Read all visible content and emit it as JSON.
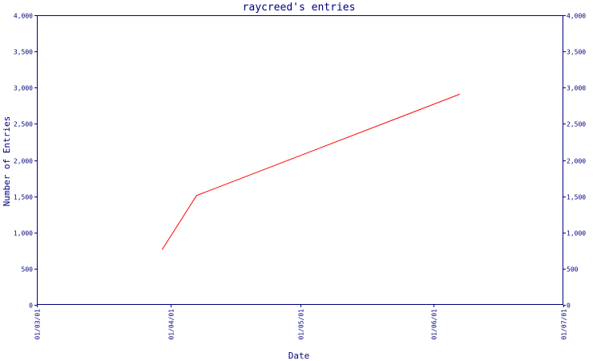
{
  "chart_data": {
    "type": "line",
    "title": "raycreed's entries",
    "xlabel": "Date",
    "ylabel": "Number of Entries",
    "x_tick_labels": [
      "01/03/01",
      "01/04/01",
      "01/05/01",
      "01/06/01",
      "01/07/01"
    ],
    "y_ticks": [
      0,
      500,
      1000,
      1500,
      2000,
      2500,
      3000,
      3500,
      4000
    ],
    "y_tick_labels": [
      "0",
      "500",
      "1,000",
      "1,500",
      "2,000",
      "2,500",
      "3,000",
      "3,500",
      "4,000"
    ],
    "ylim": [
      0,
      4000
    ],
    "x": [
      "2001-03-30",
      "2001-04-07",
      "2001-06-07"
    ],
    "series": [
      {
        "values": [
          760,
          1510,
          2910
        ]
      }
    ],
    "secondary_y_axis": true,
    "colors": {
      "axis": "#000080",
      "line": "#ff0000",
      "background": "#ffffff"
    }
  }
}
